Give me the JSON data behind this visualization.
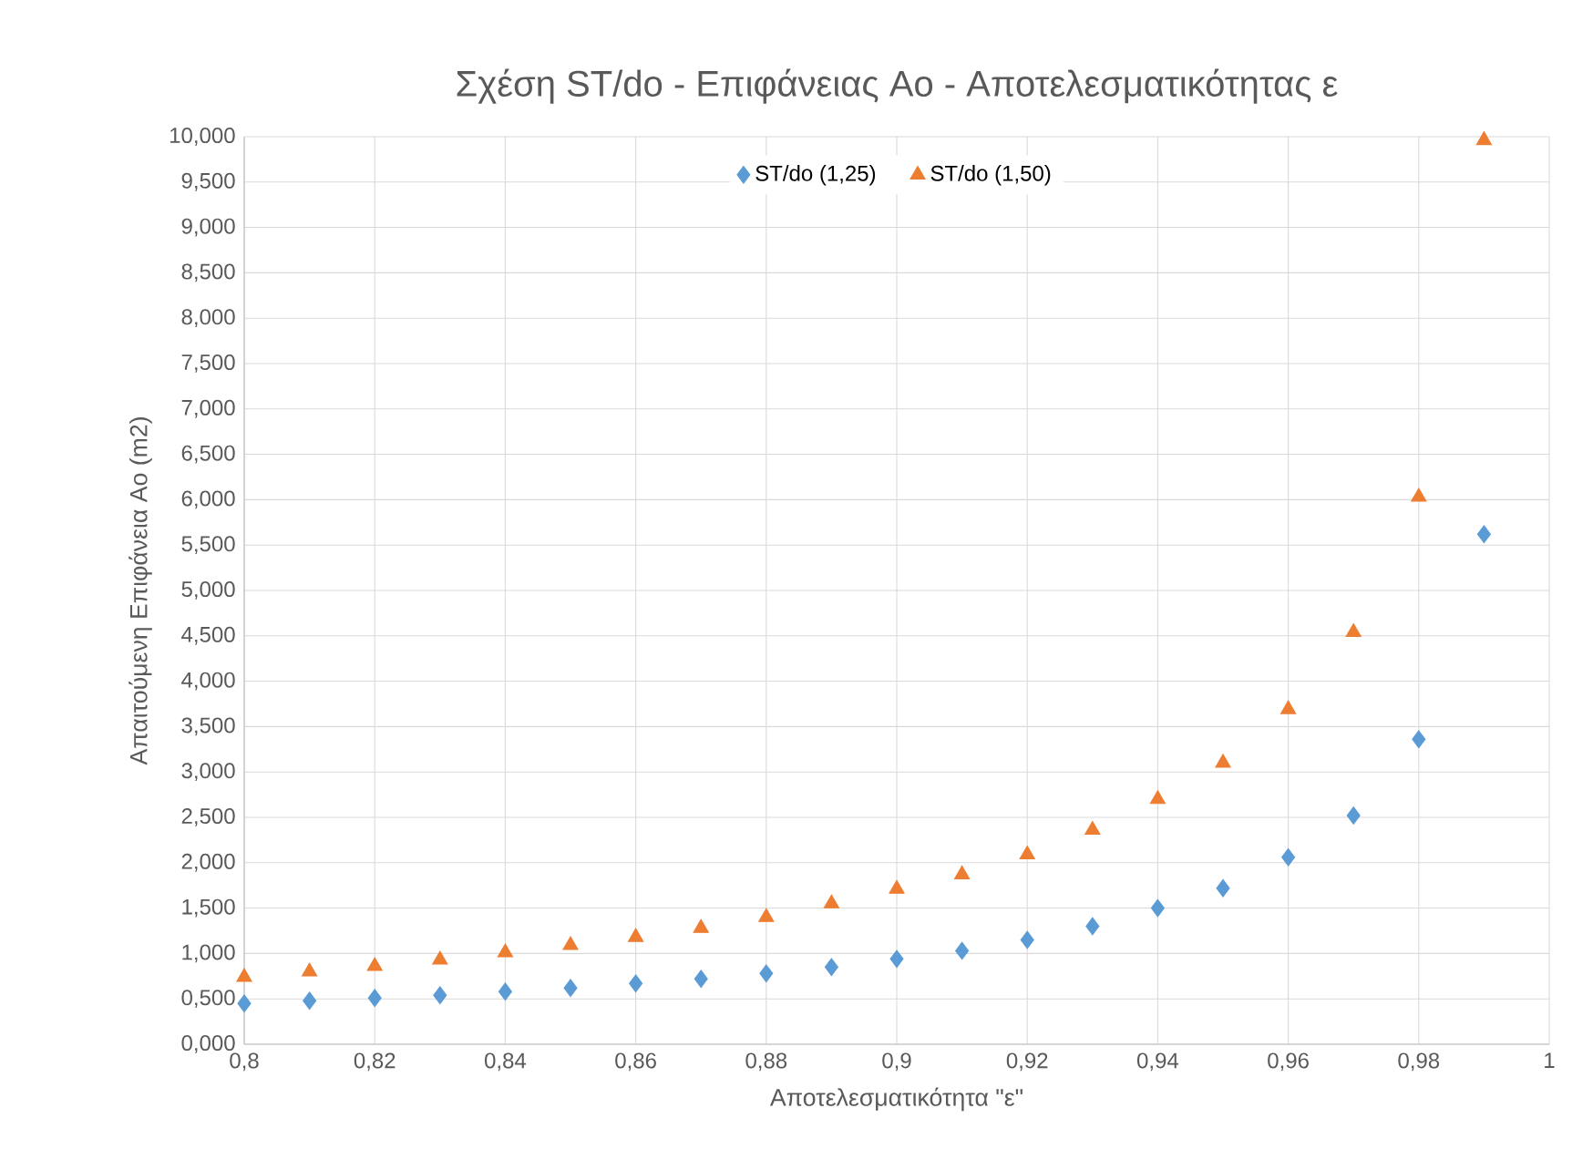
{
  "chart_data": {
    "type": "scatter",
    "title": "Σχέση ST/do -  Επιφάνειας Αο - Αποτελεσματικότητας ε",
    "xlabel": "Αποτελεσματικότητα  \"ε\"",
    "ylabel": "Απαιτούμενη  Επιφάνεια Αο  (m2)",
    "x": [
      0.8,
      0.81,
      0.82,
      0.83,
      0.84,
      0.85,
      0.86,
      0.87,
      0.88,
      0.89,
      0.9,
      0.91,
      0.92,
      0.93,
      0.94,
      0.95,
      0.96,
      0.97,
      0.98,
      0.99
    ],
    "series": [
      {
        "name": "ST/do (1,25)",
        "color": "#5b9bd5",
        "marker": "diamond",
        "values": [
          0.45,
          0.48,
          0.51,
          0.54,
          0.58,
          0.62,
          0.67,
          0.72,
          0.78,
          0.85,
          0.94,
          1.03,
          1.15,
          1.3,
          1.5,
          1.72,
          2.06,
          2.52,
          3.36,
          5.62
        ]
      },
      {
        "name": "ST/do (1,50)",
        "color": "#ed7d31",
        "marker": "triangle",
        "values": [
          0.74,
          0.8,
          0.86,
          0.93,
          1.01,
          1.09,
          1.18,
          1.28,
          1.4,
          1.55,
          1.71,
          1.87,
          2.09,
          2.36,
          2.7,
          3.1,
          3.69,
          4.54,
          6.03,
          9.96
        ]
      }
    ],
    "xlim": [
      0.8,
      1
    ],
    "xticks": [
      {
        "value": 0.8,
        "label": "0,8"
      },
      {
        "value": 0.82,
        "label": "0,82"
      },
      {
        "value": 0.84,
        "label": "0,84"
      },
      {
        "value": 0.86,
        "label": "0,86"
      },
      {
        "value": 0.88,
        "label": "0,88"
      },
      {
        "value": 0.9,
        "label": "0,9"
      },
      {
        "value": 0.92,
        "label": "0,92"
      },
      {
        "value": 0.94,
        "label": "0,94"
      },
      {
        "value": 0.96,
        "label": "0,96"
      },
      {
        "value": 0.98,
        "label": "0,98"
      },
      {
        "value": 1,
        "label": "1"
      }
    ],
    "ylim": [
      0,
      10
    ],
    "yticks": [
      {
        "value": 0,
        "label": "0,000"
      },
      {
        "value": 0.5,
        "label": "0,500"
      },
      {
        "value": 1,
        "label": "1,000"
      },
      {
        "value": 1.5,
        "label": "1,500"
      },
      {
        "value": 2,
        "label": "2,000"
      },
      {
        "value": 2.5,
        "label": "2,500"
      },
      {
        "value": 3,
        "label": "3,000"
      },
      {
        "value": 3.5,
        "label": "3,500"
      },
      {
        "value": 4,
        "label": "4,000"
      },
      {
        "value": 4.5,
        "label": "4,500"
      },
      {
        "value": 5,
        "label": "5,000"
      },
      {
        "value": 5.5,
        "label": "5,500"
      },
      {
        "value": 6,
        "label": "6,000"
      },
      {
        "value": 6.5,
        "label": "6,500"
      },
      {
        "value": 7,
        "label": "7,000"
      },
      {
        "value": 7.5,
        "label": "7,500"
      },
      {
        "value": 8,
        "label": "8,000"
      },
      {
        "value": 8.5,
        "label": "8,500"
      },
      {
        "value": 9,
        "label": "9,000"
      },
      {
        "value": 9.5,
        "label": "9,500"
      },
      {
        "value": 10,
        "label": "10,000"
      }
    ],
    "grid": true,
    "legend": "top"
  }
}
